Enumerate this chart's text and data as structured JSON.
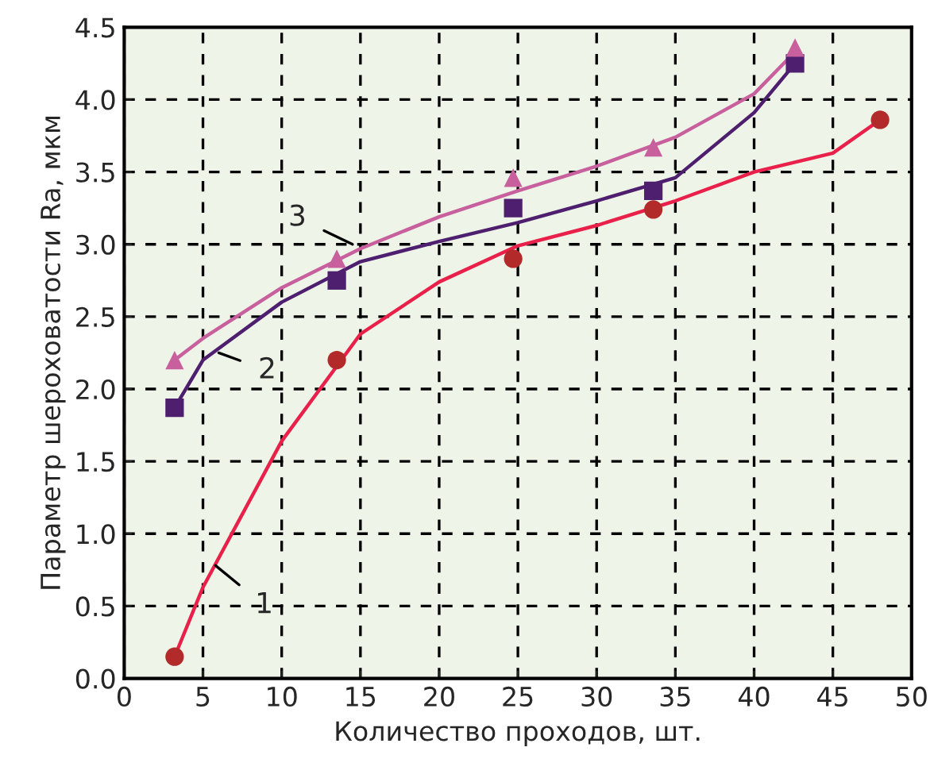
{
  "chart_data": {
    "type": "scatter",
    "xlabel": "Количество проходов, шт.",
    "ylabel": "Параметр шероховатости Ra, мкм",
    "xlim": [
      0,
      50
    ],
    "xticks": [
      0,
      5,
      10,
      15,
      20,
      25,
      30,
      35,
      40,
      45,
      50
    ],
    "ylim": [
      0,
      4.5
    ],
    "yticks": [
      {
        "value": 0,
        "label": "0.0"
      },
      0.5,
      {
        "value": 1,
        "label": "1.0"
      },
      1.5,
      {
        "value": 2,
        "label": "2.0"
      },
      2.5,
      {
        "value": 3,
        "label": "3.0"
      },
      3.5,
      {
        "value": 4,
        "label": "4.0"
      },
      4.5
    ],
    "grid": true,
    "legend": false,
    "series": [
      {
        "type": "line",
        "color": "#e8204a",
        "line_style": "solid",
        "marker": "none",
        "x": [
          3.2,
          5,
          10,
          15,
          20,
          25,
          30,
          35,
          40,
          45,
          48
        ],
        "values": [
          0.15,
          0.63,
          1.64,
          2.38,
          2.74,
          2.99,
          3.13,
          3.3,
          3.5,
          3.63,
          3.86
        ]
      },
      {
        "type": "line",
        "color": "#4e1f6e",
        "line_style": "solid",
        "marker": "none",
        "x": [
          3.2,
          5,
          10,
          15,
          20,
          25,
          30,
          35,
          40,
          42.6
        ],
        "values": [
          1.87,
          2.2,
          2.6,
          2.88,
          3.02,
          3.15,
          3.3,
          3.46,
          3.91,
          4.25
        ]
      },
      {
        "type": "line",
        "color": "#c8609e",
        "line_style": "solid",
        "marker": "none",
        "x": [
          3.2,
          5,
          10,
          15,
          20,
          25,
          30,
          35,
          40,
          42.6
        ],
        "values": [
          2.2,
          2.35,
          2.7,
          2.97,
          3.19,
          3.37,
          3.54,
          3.74,
          4.04,
          4.33
        ]
      },
      {
        "color": "#b22a2a",
        "marker": "circle",
        "x": [
          3.2,
          13.5,
          24.7,
          33.6,
          48
        ],
        "values": [
          0.15,
          2.2,
          2.9,
          3.24,
          3.86
        ]
      },
      {
        "color": "#4e1f6e",
        "marker": "square",
        "x": [
          3.2,
          13.5,
          24.7,
          33.6,
          42.6
        ],
        "values": [
          1.87,
          2.75,
          3.25,
          3.37,
          4.25
        ]
      },
      {
        "color": "#c8609e",
        "marker": "triangle",
        "x": [
          3.2,
          13.5,
          24.7,
          33.6,
          42.6
        ],
        "values": [
          2.2,
          2.9,
          3.46,
          3.67,
          4.36
        ]
      }
    ],
    "annotations": [
      {
        "text": "1",
        "x": 5.8,
        "y": 0.78
      },
      {
        "text": "2",
        "x": 6,
        "y": 2.25
      },
      {
        "text": "3",
        "x": 14.5,
        "y": 3.0
      }
    ]
  }
}
